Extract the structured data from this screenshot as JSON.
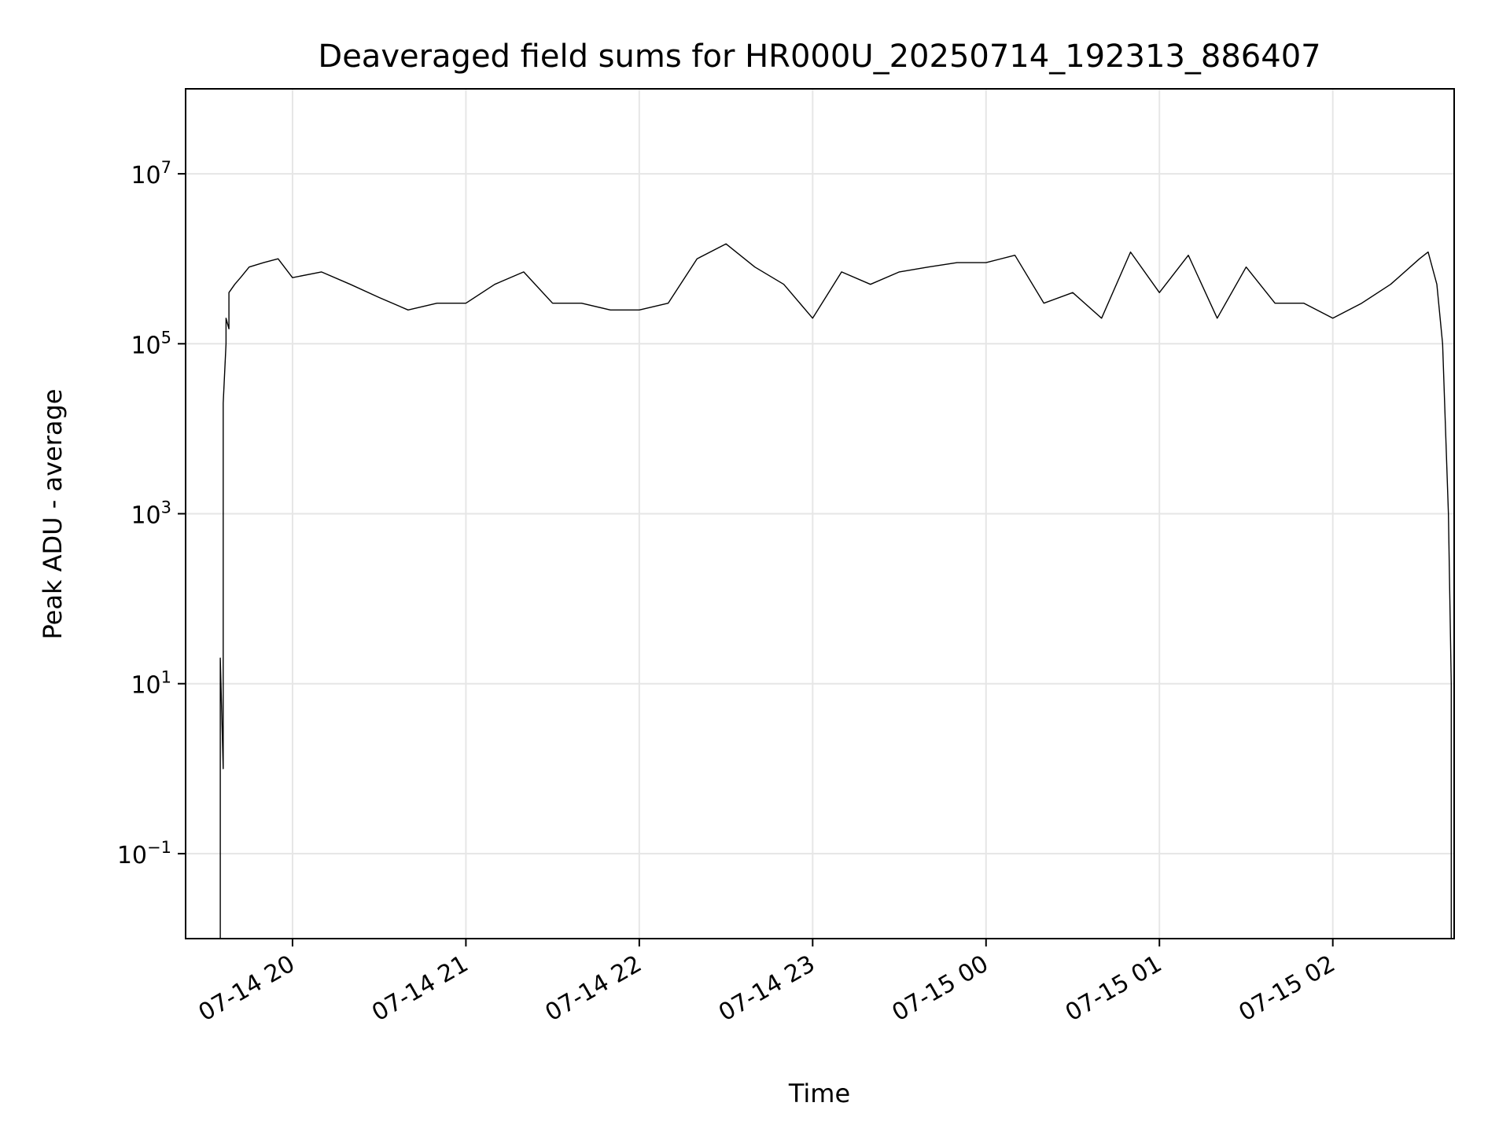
{
  "chart_data": {
    "type": "line",
    "title": "Deaveraged field sums for HR000U_20250714_192313_886407",
    "xlabel": "Time",
    "ylabel": "Peak ADU - average",
    "yscale": "log",
    "ylim": [
      0.01,
      100000000
    ],
    "xlim": [
      "2025-07-14 19:23",
      "2025-07-15 02:42"
    ],
    "grid": true,
    "line_color": "#000000",
    "grid_color": "#e6e6e6",
    "x_ticks": [
      {
        "value": "2025-07-14 20:00",
        "label": "07-14 20"
      },
      {
        "value": "2025-07-14 21:00",
        "label": "07-14 21"
      },
      {
        "value": "2025-07-14 22:00",
        "label": "07-14 22"
      },
      {
        "value": "2025-07-14 23:00",
        "label": "07-14 23"
      },
      {
        "value": "2025-07-15 00:00",
        "label": "07-15 00"
      },
      {
        "value": "2025-07-15 01:00",
        "label": "07-15 01"
      },
      {
        "value": "2025-07-15 02:00",
        "label": "07-15 02"
      }
    ],
    "y_ticks": [
      {
        "value": 0.1,
        "base": "10",
        "exp": "−1"
      },
      {
        "value": 10,
        "base": "10",
        "exp": "1"
      },
      {
        "value": 1000,
        "base": "10",
        "exp": "3"
      },
      {
        "value": 100000,
        "base": "10",
        "exp": "5"
      },
      {
        "value": 10000000,
        "base": "10",
        "exp": "7"
      }
    ],
    "series": [
      {
        "x": [
          "2025-07-14 19:35",
          "2025-07-14 19:35",
          "2025-07-14 19:36",
          "2025-07-14 19:36",
          "2025-07-14 19:36",
          "2025-07-14 19:37",
          "2025-07-14 19:37",
          "2025-07-14 19:38",
          "2025-07-14 19:38",
          "2025-07-14 19:40",
          "2025-07-14 19:42",
          "2025-07-14 19:45",
          "2025-07-14 19:50",
          "2025-07-14 19:55",
          "2025-07-14 20:00",
          "2025-07-14 20:10",
          "2025-07-14 20:20",
          "2025-07-14 20:30",
          "2025-07-14 20:40",
          "2025-07-14 20:50",
          "2025-07-14 21:00",
          "2025-07-14 21:10",
          "2025-07-14 21:20",
          "2025-07-14 21:30",
          "2025-07-14 21:40",
          "2025-07-14 21:50",
          "2025-07-14 22:00",
          "2025-07-14 22:10",
          "2025-07-14 22:20",
          "2025-07-14 22:30",
          "2025-07-14 22:40",
          "2025-07-14 22:50",
          "2025-07-14 23:00",
          "2025-07-14 23:10",
          "2025-07-14 23:20",
          "2025-07-14 23:30",
          "2025-07-14 23:40",
          "2025-07-14 23:50",
          "2025-07-15 00:00",
          "2025-07-15 00:10",
          "2025-07-15 00:20",
          "2025-07-15 00:30",
          "2025-07-15 00:40",
          "2025-07-15 00:50",
          "2025-07-15 01:00",
          "2025-07-15 01:10",
          "2025-07-15 01:20",
          "2025-07-15 01:30",
          "2025-07-15 01:40",
          "2025-07-15 01:50",
          "2025-07-15 02:00",
          "2025-07-15 02:10",
          "2025-07-15 02:20",
          "2025-07-15 02:30",
          "2025-07-15 02:33",
          "2025-07-15 02:36",
          "2025-07-15 02:38",
          "2025-07-15 02:39",
          "2025-07-15 02:40",
          "2025-07-15 02:41",
          "2025-07-15 02:41"
        ],
        "y": [
          0.01,
          20,
          1,
          800,
          20000,
          100000,
          200000,
          150000,
          400000,
          500000,
          600000,
          800000,
          900000,
          1000000,
          600000,
          700000,
          500000,
          350000,
          250000,
          300000,
          300000,
          500000,
          700000,
          300000,
          300000,
          250000,
          250000,
          300000,
          1000000,
          1500000,
          800000,
          500000,
          200000,
          700000,
          500000,
          700000,
          800000,
          900000,
          900000,
          1100000,
          300000,
          400000,
          200000,
          1200000,
          400000,
          1100000,
          200000,
          800000,
          300000,
          300000,
          200000,
          300000,
          500000,
          1000000,
          1200000,
          500000,
          100000,
          10000,
          1000,
          10,
          0.01
        ]
      }
    ]
  }
}
